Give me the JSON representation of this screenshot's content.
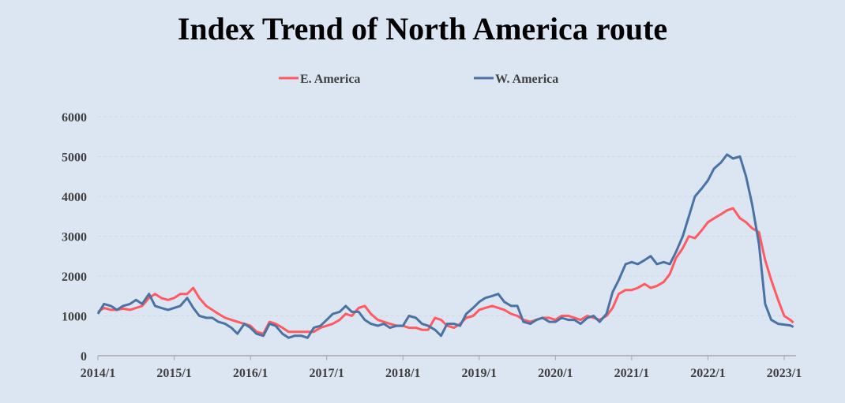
{
  "chart_data": {
    "type": "line",
    "title": "Index Trend of North America route",
    "xlabel": "",
    "ylabel": "",
    "ylim": [
      0,
      6000
    ],
    "yticks": [
      0,
      1000,
      2000,
      3000,
      4000,
      5000,
      6000
    ],
    "xticks": [
      "2014/1",
      "2015/1",
      "2016/1",
      "2017/1",
      "2018/1",
      "2019/1",
      "2020/1",
      "2021/1",
      "2022/1",
      "2023/1"
    ],
    "xlim": [
      2014.0,
      2023.12
    ],
    "grid": true,
    "legend_position": "top-center",
    "x": [
      2014.0,
      2014.08,
      2014.17,
      2014.25,
      2014.33,
      2014.42,
      2014.5,
      2014.58,
      2014.67,
      2014.75,
      2014.83,
      2014.92,
      2015.0,
      2015.08,
      2015.17,
      2015.25,
      2015.33,
      2015.42,
      2015.5,
      2015.58,
      2015.67,
      2015.75,
      2015.83,
      2015.92,
      2016.0,
      2016.08,
      2016.17,
      2016.25,
      2016.33,
      2016.42,
      2016.5,
      2016.58,
      2016.67,
      2016.75,
      2016.83,
      2016.92,
      2017.0,
      2017.08,
      2017.17,
      2017.25,
      2017.33,
      2017.42,
      2017.5,
      2017.58,
      2017.67,
      2017.75,
      2017.83,
      2017.92,
      2018.0,
      2018.08,
      2018.17,
      2018.25,
      2018.33,
      2018.42,
      2018.5,
      2018.58,
      2018.67,
      2018.75,
      2018.83,
      2018.92,
      2019.0,
      2019.08,
      2019.17,
      2019.25,
      2019.33,
      2019.42,
      2019.5,
      2019.58,
      2019.67,
      2019.75,
      2019.83,
      2019.92,
      2020.0,
      2020.08,
      2020.17,
      2020.25,
      2020.33,
      2020.42,
      2020.5,
      2020.58,
      2020.67,
      2020.75,
      2020.83,
      2020.92,
      2021.0,
      2021.08,
      2021.17,
      2021.25,
      2021.33,
      2021.42,
      2021.5,
      2021.58,
      2021.67,
      2021.75,
      2021.83,
      2021.92,
      2022.0,
      2022.08,
      2022.17,
      2022.25,
      2022.33,
      2022.42,
      2022.5,
      2022.58,
      2022.67,
      2022.75,
      2022.83,
      2022.92,
      2023.0,
      2023.08,
      2023.12
    ],
    "series": [
      {
        "name": "E. America",
        "color": "#ff5a5f",
        "values": [
          1100,
          1200,
          1150,
          1150,
          1180,
          1150,
          1200,
          1250,
          1450,
          1550,
          1450,
          1400,
          1450,
          1550,
          1550,
          1700,
          1450,
          1250,
          1150,
          1050,
          950,
          900,
          850,
          800,
          750,
          600,
          550,
          850,
          800,
          700,
          600,
          600,
          600,
          600,
          600,
          700,
          750,
          800,
          900,
          1050,
          1000,
          1200,
          1250,
          1050,
          900,
          850,
          800,
          750,
          750,
          700,
          700,
          650,
          650,
          950,
          900,
          750,
          700,
          800,
          950,
          1000,
          1150,
          1200,
          1250,
          1200,
          1150,
          1050,
          1000,
          900,
          850,
          900,
          950,
          950,
          900,
          1000,
          1000,
          950,
          900,
          1000,
          950,
          900,
          1000,
          1200,
          1550,
          1650,
          1650,
          1700,
          1800,
          1700,
          1750,
          1850,
          2050,
          2450,
          2700,
          3000,
          2950,
          3150,
          3350,
          3450,
          3550,
          3650,
          3700,
          3450,
          3350,
          3200,
          3100,
          2400,
          1900,
          1400,
          1000,
          900,
          830
        ]
      },
      {
        "name": "W. America",
        "color": "#4a72a4",
        "values": [
          1050,
          1300,
          1250,
          1150,
          1250,
          1300,
          1400,
          1300,
          1550,
          1250,
          1200,
          1150,
          1200,
          1250,
          1450,
          1200,
          1000,
          950,
          950,
          850,
          800,
          700,
          550,
          800,
          700,
          550,
          500,
          800,
          750,
          550,
          450,
          500,
          500,
          450,
          700,
          750,
          900,
          1050,
          1100,
          1250,
          1100,
          1100,
          900,
          800,
          750,
          800,
          700,
          750,
          750,
          1000,
          950,
          800,
          750,
          650,
          500,
          800,
          800,
          750,
          1050,
          1200,
          1350,
          1450,
          1500,
          1550,
          1350,
          1250,
          1250,
          850,
          800,
          900,
          950,
          850,
          850,
          950,
          900,
          900,
          800,
          950,
          1000,
          850,
          1050,
          1600,
          1900,
          2300,
          2350,
          2300,
          2400,
          2500,
          2300,
          2350,
          2300,
          2600,
          3000,
          3500,
          4000,
          4200,
          4400,
          4700,
          4850,
          5050,
          4950,
          5000,
          4500,
          3800,
          2800,
          1300,
          900,
          800,
          780,
          760,
          720
        ]
      }
    ]
  }
}
